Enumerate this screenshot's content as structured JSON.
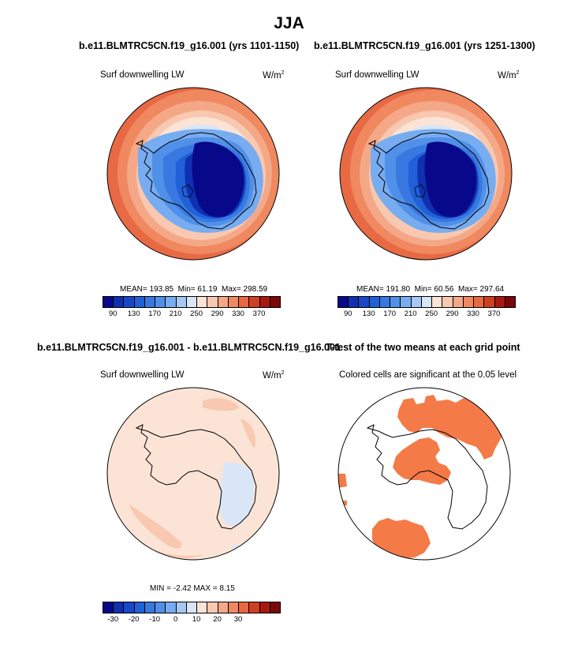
{
  "figure": {
    "main_title": "JJA",
    "title_left": "b.e11.BLMTRC5CN.f19_g16.001 (yrs 1101-1150)",
    "title_right": "b.e11.BLMTRC5CN.f19_g16.001 (yrs 1251-1300)",
    "title_diff": "b.e11.BLMTRC5CN.f19_g16.001 - b.e11.BLMTRC5CN.f19_g16.001",
    "title_ttest": "T-test of the two means at each grid point",
    "variable": "Surf downwelling LW",
    "units": "W/m",
    "units_exp": "2",
    "signif_note": "Colored cells are significant at the 0.05 level"
  },
  "chart_data": [
    {
      "type": "heatmap",
      "name": "panel-1101-1150",
      "projection": "south-polar-stereographic",
      "title": "b.e11.BLMTRC5CN.f19_g16.001 (yrs 1101-1150)",
      "variable": "Surf downwelling LW",
      "units": "W/m2",
      "mean": "193.85",
      "min": "61.19",
      "max": "298.59",
      "mean_label": "MEAN=",
      "min_label": "Min=",
      "max_label": "Max=",
      "levels": [
        70,
        90,
        110,
        130,
        150,
        170,
        190,
        210,
        230,
        250,
        270,
        290,
        310,
        330,
        350,
        370
      ],
      "tick_labels": [
        "90",
        "130",
        "170",
        "210",
        "250",
        "290",
        "330",
        "370"
      ]
    },
    {
      "type": "heatmap",
      "name": "panel-1251-1300",
      "projection": "south-polar-stereographic",
      "title": "b.e11.BLMTRC5CN.f19_g16.001 (yrs 1251-1300)",
      "variable": "Surf downwelling LW",
      "units": "W/m2",
      "mean": "191.80",
      "min": "60.56",
      "max": "297.64",
      "mean_label": "MEAN=",
      "min_label": "Min=",
      "max_label": "Max=",
      "levels": [
        70,
        90,
        110,
        130,
        150,
        170,
        190,
        210,
        230,
        250,
        270,
        290,
        310,
        330,
        350,
        370
      ],
      "tick_labels": [
        "90",
        "130",
        "170",
        "210",
        "250",
        "290",
        "330",
        "370"
      ]
    },
    {
      "type": "heatmap",
      "name": "panel-difference",
      "projection": "south-polar-stereographic",
      "title": "b.e11.BLMTRC5CN.f19_g16.001 - b.e11.BLMTRC5CN.f19_g16.001",
      "variable": "Surf downwelling LW",
      "units": "W/m2",
      "min": "-2.42",
      "max": "8.15",
      "min_label": "MIN =",
      "max_label": "MAX =",
      "levels": [
        -40,
        -35,
        -30,
        -25,
        -20,
        -15,
        -10,
        -5,
        0,
        5,
        10,
        15,
        20,
        25,
        30,
        35,
        40
      ],
      "tick_labels": [
        "-30",
        "-20",
        "-10",
        "0",
        "10",
        "20",
        "30"
      ]
    },
    {
      "type": "heatmap",
      "name": "panel-ttest",
      "projection": "south-polar-stereographic",
      "title": "T-test of the two means at each grid point",
      "note": "Colored cells are significant at the 0.05 level",
      "significance_level": 0.05
    }
  ],
  "colors": {
    "abs_scale": [
      "#08088a",
      "#1030b0",
      "#1848c8",
      "#2060d8",
      "#3878e0",
      "#5090e8",
      "#78acf0",
      "#a8c8f4",
      "#d8e6f8",
      "#fbe4d6",
      "#f8c8b0",
      "#f4a888",
      "#f08860",
      "#e86840",
      "#d04020",
      "#a81810",
      "#7a0808"
    ],
    "diff_scale": [
      "#08088a",
      "#1030b0",
      "#1848c8",
      "#2060d8",
      "#3878e0",
      "#5090e8",
      "#78acf0",
      "#a8c8f4",
      "#d8e6f8",
      "#fbe4d6",
      "#f8c8b0",
      "#f4a888",
      "#f08860",
      "#e86840",
      "#d04020",
      "#a81810",
      "#7a0808"
    ],
    "signif_fill": "#f47a48"
  }
}
